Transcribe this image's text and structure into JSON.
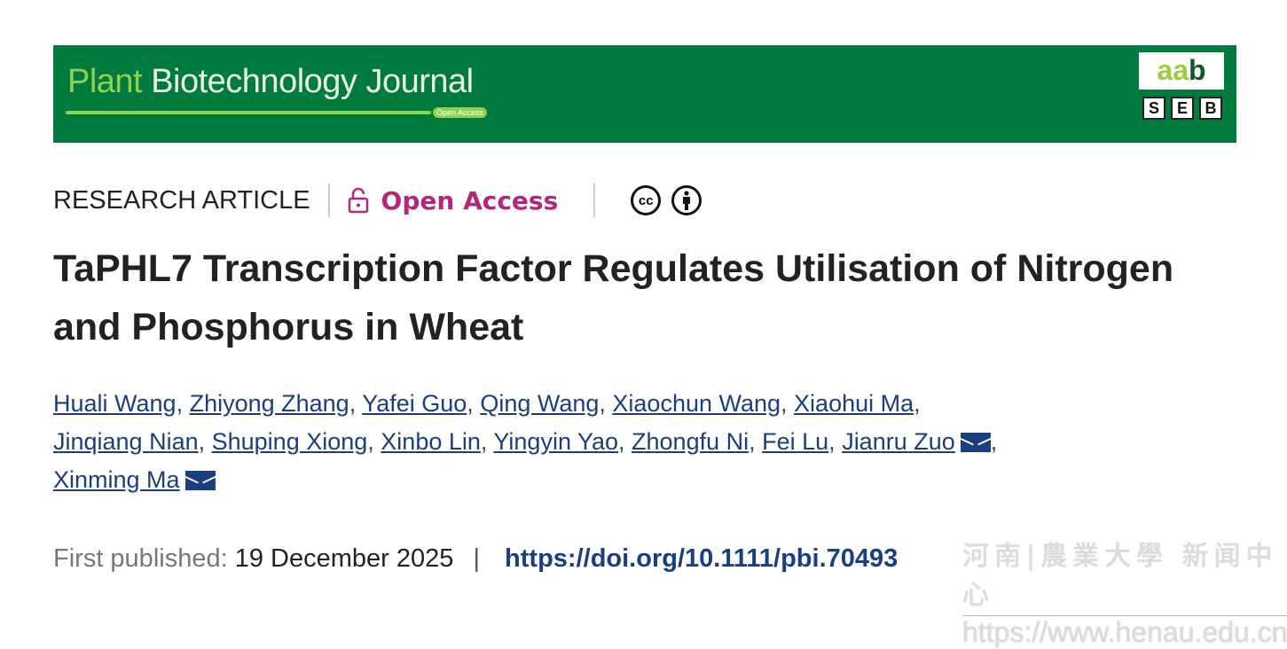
{
  "banner": {
    "journal_part1": "Plant",
    "journal_part2": "Biotechnology Journal",
    "open_access_pill": "Open Access",
    "aab_logo": "aab",
    "seb_logo": [
      "S",
      "E",
      "B"
    ]
  },
  "meta": {
    "article_type": "RESEARCH ARTICLE",
    "open_access": "Open Access",
    "icons": [
      "lock-open-icon",
      "creative-commons-icon",
      "attribution-icon"
    ],
    "cc": "cc"
  },
  "title": "TaPHL7 Transcription Factor Regulates Utilisation of Nitrogen and Phosphorus in Wheat",
  "authors": [
    "Huali Wang",
    "Zhiyong Zhang",
    "Yafei Guo",
    "Qing Wang",
    "Xiaochun Wang",
    "Xiaohui Ma",
    "Jinqiang Nian",
    "Shuping Xiong",
    "Xinbo Lin",
    "Yingyin Yao",
    "Zhongfu Ni",
    "Fei Lu",
    "Jianru Zuo",
    "Xinming Ma"
  ],
  "publication": {
    "label": "First published:",
    "date": "19 December 2025",
    "separator": "|",
    "doi": "https://doi.org/10.1111/pbi.70493"
  },
  "watermark": {
    "line1": "河南|農業大學 新闻中心",
    "line2": "https://www.henau.edu.cn"
  },
  "colors": {
    "banner": "#007a3d",
    "open_access": "#b5267b",
    "link": "#1a3e82"
  }
}
